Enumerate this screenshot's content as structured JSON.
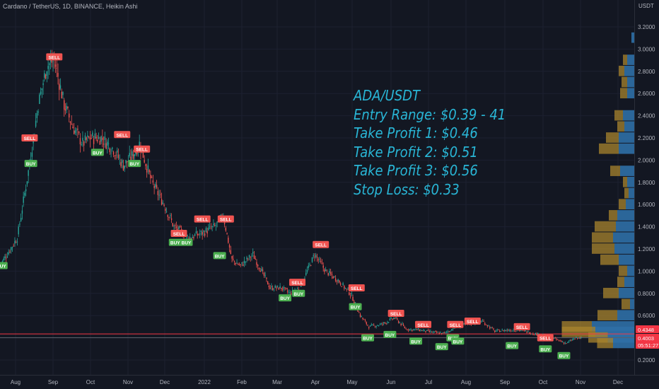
{
  "header": {
    "title": "Cardano / TetherUS, 1D, BINANCE, Heikin Ashi"
  },
  "axis": {
    "currency": "USDT"
  },
  "note": {
    "line1": "ADA/USDT",
    "line2": "Entry Range: $0.39 - 41",
    "line3": "Take Profit 1: $0.46",
    "line4": "Take Profit 2: $0.51",
    "line5": "Take Profit 3: $0.56",
    "line6": "Stop Loss: $0.33"
  },
  "colors": {
    "background": "#131722",
    "up": "#26a69a",
    "down": "#ef5350",
    "sell_badge": "#ef5350",
    "buy_badge": "#4caf50",
    "note_text": "#29b6d6",
    "profile_blue": "#2f6fa6",
    "profile_gold": "#a8842e",
    "hline": "#f23645",
    "axis_text": "#b2b5be"
  },
  "chart_data": {
    "type": "candlestick",
    "ylim": [
      0.1,
      3.4
    ],
    "y_ticks": [
      "3.2000",
      "3.0000",
      "2.8000",
      "2.6000",
      "2.4000",
      "2.2000",
      "2.0000",
      "1.8000",
      "1.6000",
      "1.4000",
      "1.2000",
      "1.0000",
      "0.8000",
      "0.6000",
      "0.4000",
      "0.2000"
    ],
    "x_labels": [
      "Aug",
      "Sep",
      "Oct",
      "Nov",
      "Dec",
      "2022",
      "Feb",
      "Mar",
      "Apr",
      "May",
      "Jun",
      "Jul",
      "Aug",
      "Sep",
      "Oct",
      "Nov",
      "Dec"
    ],
    "price_key_points": [
      [
        "2021-07-20",
        1.05
      ],
      [
        "2021-08-03",
        1.3
      ],
      [
        "2021-08-12",
        1.9
      ],
      [
        "2021-08-20",
        2.5
      ],
      [
        "2021-08-27",
        2.85
      ],
      [
        "2021-09-02",
        2.9
      ],
      [
        "2021-09-10",
        2.5
      ],
      [
        "2021-09-17",
        2.3
      ],
      [
        "2021-09-25",
        2.15
      ],
      [
        "2021-10-01",
        2.2
      ],
      [
        "2021-10-10",
        2.2
      ],
      [
        "2021-10-20",
        2.1
      ],
      [
        "2021-10-28",
        1.95
      ],
      [
        "2021-11-05",
        2.05
      ],
      [
        "2021-11-10",
        2.15
      ],
      [
        "2021-11-20",
        1.8
      ],
      [
        "2021-11-30",
        1.6
      ],
      [
        "2021-12-08",
        1.4
      ],
      [
        "2021-12-20",
        1.3
      ],
      [
        "2022-01-01",
        1.35
      ],
      [
        "2022-01-10",
        1.4
      ],
      [
        "2022-01-17",
        1.5
      ],
      [
        "2022-01-24",
        1.1
      ],
      [
        "2022-01-31",
        1.05
      ],
      [
        "2022-02-10",
        1.15
      ],
      [
        "2022-02-24",
        0.85
      ],
      [
        "2022-03-05",
        0.85
      ],
      [
        "2022-03-12",
        0.8
      ],
      [
        "2022-03-20",
        0.85
      ],
      [
        "2022-04-01",
        1.15
      ],
      [
        "2022-04-10",
        1.0
      ],
      [
        "2022-04-20",
        0.92
      ],
      [
        "2022-05-01",
        0.78
      ],
      [
        "2022-05-08",
        0.6
      ],
      [
        "2022-05-15",
        0.5
      ],
      [
        "2022-05-25",
        0.52
      ],
      [
        "2022-06-05",
        0.58
      ],
      [
        "2022-06-14",
        0.48
      ],
      [
        "2022-06-25",
        0.47
      ],
      [
        "2022-07-05",
        0.45
      ],
      [
        "2022-07-15",
        0.44
      ],
      [
        "2022-07-25",
        0.5
      ],
      [
        "2022-08-05",
        0.53
      ],
      [
        "2022-08-15",
        0.55
      ],
      [
        "2022-08-25",
        0.46
      ],
      [
        "2022-09-05",
        0.47
      ],
      [
        "2022-09-15",
        0.47
      ],
      [
        "2022-09-25",
        0.44
      ],
      [
        "2022-10-05",
        0.42
      ],
      [
        "2022-10-15",
        0.38
      ],
      [
        "2022-10-22",
        0.35
      ],
      [
        "2022-10-28",
        0.39
      ],
      [
        "2022-11-03",
        0.4
      ]
    ],
    "signals": [
      {
        "label": "SELL",
        "date": "2021-09-02",
        "price": 2.93
      },
      {
        "label": "SELL",
        "date": "2021-08-13",
        "price": 2.2
      },
      {
        "label": "BUY",
        "date": "2021-08-14",
        "price": 1.97
      },
      {
        "label": "BUY",
        "date": "2021-07-21",
        "price": 1.05
      },
      {
        "label": "BUY",
        "date": "2021-10-07",
        "price": 2.07
      },
      {
        "label": "SELL",
        "date": "2021-10-27",
        "price": 2.23
      },
      {
        "label": "SELL",
        "date": "2021-11-12",
        "price": 2.1
      },
      {
        "label": "BUY",
        "date": "2021-11-06",
        "price": 1.97
      },
      {
        "label": "SELL",
        "date": "2021-12-12",
        "price": 1.34
      },
      {
        "label": "BUY",
        "date": "2021-12-09",
        "price": 1.26
      },
      {
        "label": "BUY",
        "date": "2021-12-18",
        "price": 1.26
      },
      {
        "label": "SELL",
        "date": "2021-12-31",
        "price": 1.47
      },
      {
        "label": "SELL",
        "date": "2022-01-19",
        "price": 1.47
      },
      {
        "label": "BUY",
        "date": "2022-01-14",
        "price": 1.14
      },
      {
        "label": "SELL",
        "date": "2022-03-18",
        "price": 0.9
      },
      {
        "label": "BUY",
        "date": "2022-03-08",
        "price": 0.76
      },
      {
        "label": "BUY",
        "date": "2022-03-19",
        "price": 0.8
      },
      {
        "label": "SELL",
        "date": "2022-04-06",
        "price": 1.24
      },
      {
        "label": "SELL",
        "date": "2022-05-05",
        "price": 0.85
      },
      {
        "label": "BUY",
        "date": "2022-05-04",
        "price": 0.68
      },
      {
        "label": "SELL",
        "date": "2022-06-06",
        "price": 0.62
      },
      {
        "label": "BUY",
        "date": "2022-05-14",
        "price": 0.4
      },
      {
        "label": "BUY",
        "date": "2022-06-01",
        "price": 0.43
      },
      {
        "label": "SELL",
        "date": "2022-06-28",
        "price": 0.52
      },
      {
        "label": "BUY",
        "date": "2022-06-22",
        "price": 0.37
      },
      {
        "label": "BUY",
        "date": "2022-07-13",
        "price": 0.32
      },
      {
        "label": "SELL",
        "date": "2022-07-24",
        "price": 0.52
      },
      {
        "label": "BUY",
        "date": "2022-07-22",
        "price": 0.4
      },
      {
        "label": "BUY",
        "date": "2022-07-26",
        "price": 0.37
      },
      {
        "label": "SELL",
        "date": "2022-08-07",
        "price": 0.55
      },
      {
        "label": "BUY",
        "date": "2022-09-08",
        "price": 0.33
      },
      {
        "label": "SELL",
        "date": "2022-09-16",
        "price": 0.5
      },
      {
        "label": "SELL",
        "date": "2022-10-05",
        "price": 0.4
      },
      {
        "label": "BUY",
        "date": "2022-10-05",
        "price": 0.3
      },
      {
        "label": "BUY",
        "date": "2022-10-20",
        "price": 0.24
      }
    ],
    "volume_profile": [
      {
        "price": 3.1,
        "blue": 4,
        "gold": 0
      },
      {
        "price": 2.9,
        "blue": 10,
        "gold": 6
      },
      {
        "price": 2.8,
        "blue": 14,
        "gold": 8
      },
      {
        "price": 2.7,
        "blue": 10,
        "gold": 8
      },
      {
        "price": 2.6,
        "blue": 10,
        "gold": 10
      },
      {
        "price": 2.4,
        "blue": 16,
        "gold": 12
      },
      {
        "price": 2.3,
        "blue": 14,
        "gold": 10
      },
      {
        "price": 2.2,
        "blue": 22,
        "gold": 18
      },
      {
        "price": 2.1,
        "blue": 22,
        "gold": 28
      },
      {
        "price": 1.9,
        "blue": 20,
        "gold": 14
      },
      {
        "price": 1.8,
        "blue": 10,
        "gold": 6
      },
      {
        "price": 1.7,
        "blue": 8,
        "gold": 6
      },
      {
        "price": 1.6,
        "blue": 12,
        "gold": 10
      },
      {
        "price": 1.5,
        "blue": 24,
        "gold": 12
      },
      {
        "price": 1.4,
        "blue": 26,
        "gold": 30
      },
      {
        "price": 1.3,
        "blue": 30,
        "gold": 30
      },
      {
        "price": 1.2,
        "blue": 28,
        "gold": 32
      },
      {
        "price": 1.1,
        "blue": 22,
        "gold": 26
      },
      {
        "price": 1.0,
        "blue": 10,
        "gold": 12
      },
      {
        "price": 0.9,
        "blue": 14,
        "gold": 10
      },
      {
        "price": 0.8,
        "blue": 22,
        "gold": 22
      },
      {
        "price": 0.7,
        "blue": 6,
        "gold": 12
      },
      {
        "price": 0.6,
        "blue": 24,
        "gold": 28
      },
      {
        "price": 0.5,
        "blue": 120,
        "gold": 85
      },
      {
        "price": 0.45,
        "blue": 110,
        "gold": 95
      },
      {
        "price": 0.4,
        "blue": 75,
        "gold": 55
      },
      {
        "price": 0.35,
        "blue": 60,
        "gold": 45
      }
    ],
    "horizontal_lines": [
      {
        "price": 0.4348,
        "color": "#f23645"
      },
      {
        "price": 0.4003,
        "color": "#5d606b"
      }
    ],
    "price_labels": [
      {
        "value": "0.4348",
        "bg": "#f23645"
      },
      {
        "value": "0.4003",
        "bg": "#f23645"
      },
      {
        "value": "05:51:27",
        "bg": "#f23645"
      }
    ]
  }
}
